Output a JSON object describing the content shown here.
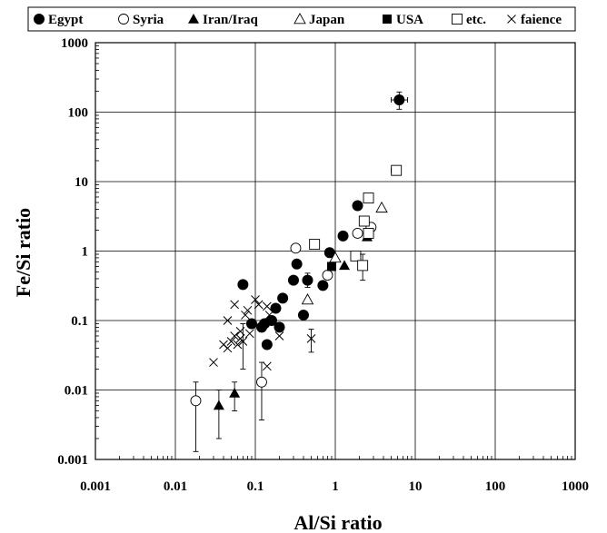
{
  "chart_data": {
    "type": "scatter",
    "xlabel": "Al/Si ratio",
    "ylabel": "Fe/Si ratio",
    "xscale": "log",
    "yscale": "log",
    "xlim": [
      0.001,
      1000
    ],
    "ylim": [
      0.001,
      1000
    ],
    "grid": true,
    "legend_position": "top",
    "x_tick_labels": [
      "0.001",
      "0.01",
      "0.1",
      "1",
      "10",
      "100",
      "1000"
    ],
    "y_tick_labels": [
      "0.001",
      "0.01",
      "0.1",
      "1",
      "10",
      "100",
      "1000"
    ],
    "series": [
      {
        "name": "Egypt",
        "marker": "filled-circle",
        "points": [
          {
            "x": 6.3,
            "y": 150,
            "xerr": [
              5.0,
              8.0
            ],
            "yerr": [
              110,
              195
            ]
          },
          {
            "x": 0.07,
            "y": 0.33
          },
          {
            "x": 0.09,
            "y": 0.09
          },
          {
            "x": 0.12,
            "y": 0.08
          },
          {
            "x": 0.13,
            "y": 0.09
          },
          {
            "x": 0.14,
            "y": 0.045
          },
          {
            "x": 0.16,
            "y": 0.1
          },
          {
            "x": 0.18,
            "y": 0.15
          },
          {
            "x": 0.2,
            "y": 0.08
          },
          {
            "x": 0.22,
            "y": 0.21
          },
          {
            "x": 0.3,
            "y": 0.38
          },
          {
            "x": 0.33,
            "y": 0.65
          },
          {
            "x": 0.4,
            "y": 0.12
          },
          {
            "x": 0.45,
            "y": 0.38,
            "yerr": [
              0.3,
              0.48
            ]
          },
          {
            "x": 0.7,
            "y": 0.32
          },
          {
            "x": 0.85,
            "y": 0.95
          },
          {
            "x": 1.25,
            "y": 1.65
          },
          {
            "x": 1.9,
            "y": 4.5
          }
        ]
      },
      {
        "name": "Syria",
        "marker": "open-circle",
        "points": [
          {
            "x": 0.018,
            "y": 0.007,
            "yerr": [
              0.0013,
              0.013
            ]
          },
          {
            "x": 0.12,
            "y": 0.013,
            "yerr": [
              0.0037,
              0.025
            ]
          },
          {
            "x": 0.32,
            "y": 1.1
          },
          {
            "x": 0.8,
            "y": 0.45
          },
          {
            "x": 1.9,
            "y": 1.8
          },
          {
            "x": 2.8,
            "y": 2.2
          }
        ]
      },
      {
        "name": "Iran/Iraq",
        "marker": "filled-triangle",
        "points": [
          {
            "x": 0.035,
            "y": 0.006,
            "yerr": [
              0.002,
              0.01
            ]
          },
          {
            "x": 0.055,
            "y": 0.009,
            "yerr": [
              0.005,
              0.013
            ]
          },
          {
            "x": 1.3,
            "y": 0.62
          },
          {
            "x": 2.5,
            "y": 1.6
          }
        ]
      },
      {
        "name": "Japan",
        "marker": "open-triangle",
        "points": [
          {
            "x": 0.45,
            "y": 0.2
          },
          {
            "x": 1.0,
            "y": 0.8
          },
          {
            "x": 3.8,
            "y": 4.2
          }
        ]
      },
      {
        "name": "USA",
        "marker": "filled-square",
        "points": [
          {
            "x": 0.9,
            "y": 0.6
          }
        ]
      },
      {
        "name": "etc.",
        "marker": "open-square",
        "points": [
          {
            "x": 5.8,
            "y": 14.5,
            "xerr": [
              5.0,
              6.6
            ]
          },
          {
            "x": 0.55,
            "y": 1.25
          },
          {
            "x": 1.8,
            "y": 0.85
          },
          {
            "x": 2.3,
            "y": 2.7
          },
          {
            "x": 2.6,
            "y": 1.8
          },
          {
            "x": 2.6,
            "y": 5.8
          },
          {
            "x": 2.2,
            "y": 0.62,
            "yerr": [
              0.38,
              0.9
            ]
          }
        ]
      },
      {
        "name": "faience",
        "marker": "cross",
        "points": [
          {
            "x": 0.03,
            "y": 0.025
          },
          {
            "x": 0.04,
            "y": 0.045
          },
          {
            "x": 0.045,
            "y": 0.04
          },
          {
            "x": 0.05,
            "y": 0.05
          },
          {
            "x": 0.055,
            "y": 0.06
          },
          {
            "x": 0.06,
            "y": 0.045
          },
          {
            "x": 0.065,
            "y": 0.055
          },
          {
            "x": 0.07,
            "y": 0.05,
            "yerr": [
              0.02,
              0.09
            ]
          },
          {
            "x": 0.045,
            "y": 0.1
          },
          {
            "x": 0.055,
            "y": 0.17
          },
          {
            "x": 0.075,
            "y": 0.12
          },
          {
            "x": 0.08,
            "y": 0.14
          },
          {
            "x": 0.1,
            "y": 0.2
          },
          {
            "x": 0.11,
            "y": 0.17
          },
          {
            "x": 0.14,
            "y": 0.16
          },
          {
            "x": 0.15,
            "y": 0.12
          },
          {
            "x": 0.14,
            "y": 0.022
          },
          {
            "x": 0.2,
            "y": 0.06
          },
          {
            "x": 0.5,
            "y": 0.055,
            "yerr": [
              0.035,
              0.075
            ]
          },
          {
            "x": 0.065,
            "y": 0.07
          },
          {
            "x": 0.085,
            "y": 0.065
          }
        ]
      }
    ]
  }
}
